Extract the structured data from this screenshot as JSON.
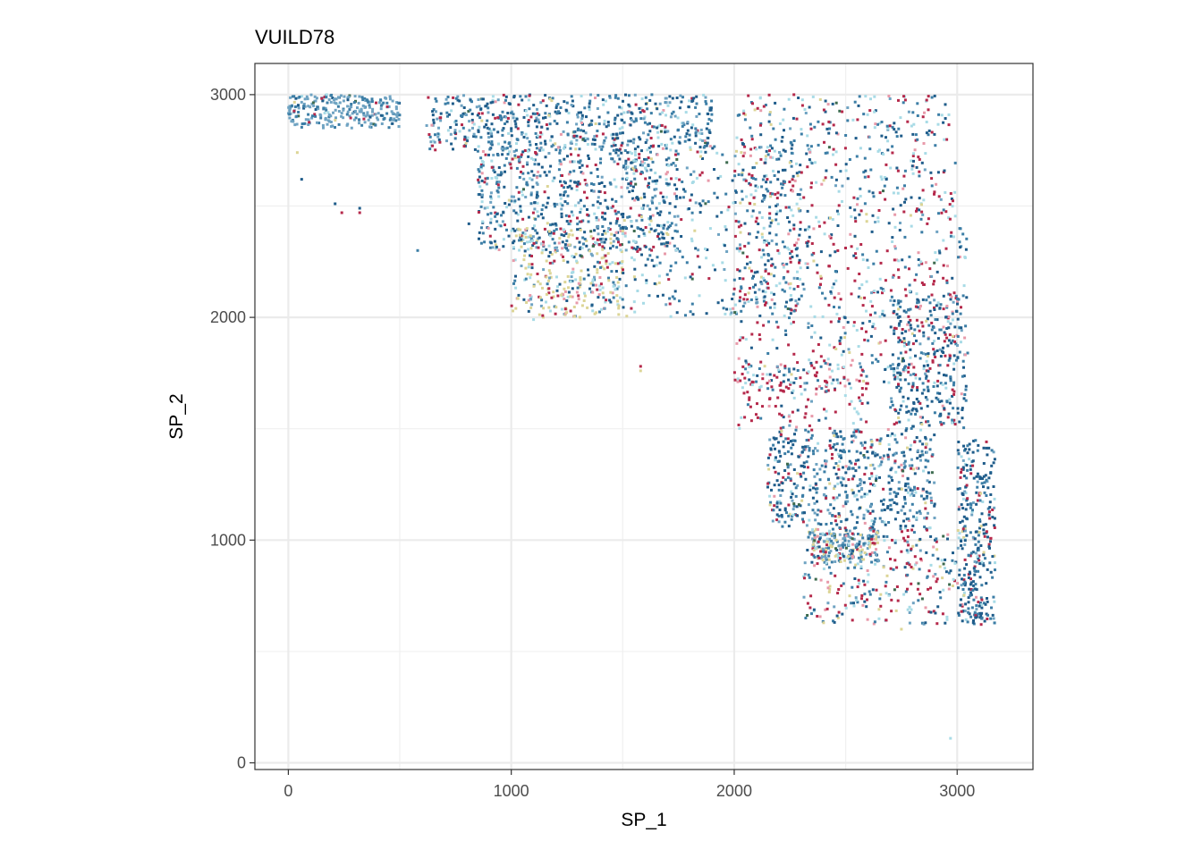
{
  "chart_data": {
    "type": "scatter",
    "title": "VUILD78",
    "xlabel": "SP_1",
    "ylabel": "SP_2",
    "xlim": [
      -150,
      3340
    ],
    "ylim": [
      -30,
      3140
    ],
    "xticks": [
      0,
      1000,
      2000,
      3000
    ],
    "yticks": [
      0,
      1000,
      2000,
      3000
    ],
    "grid": true,
    "legend": "none",
    "palette": [
      "#1f5c8a",
      "#3c7ea6",
      "#6fa3c2",
      "#a8dbe6",
      "#b5294b",
      "#e89aaa",
      "#dcd596",
      "#3d6b4f"
    ],
    "series": [
      {
        "color": "#1f5c8a"
      },
      {
        "color": "#3c7ea6"
      },
      {
        "color": "#6fa3c2"
      },
      {
        "color": "#a8dbe6"
      },
      {
        "color": "#b5294b"
      },
      {
        "color": "#e89aaa"
      },
      {
        "color": "#dcd596"
      },
      {
        "color": "#3d6b4f"
      }
    ],
    "regions": [
      {
        "x": [
          0,
          500
        ],
        "y": [
          2850,
          3000
        ],
        "n": 260,
        "w": [
          0.05,
          0.25,
          0.6,
          0.05,
          0.02,
          0,
          0.01,
          0.02
        ]
      },
      {
        "x": [
          620,
          1900
        ],
        "y": [
          2750,
          3000
        ],
        "n": 600,
        "w": [
          0.3,
          0.3,
          0.15,
          0.12,
          0.08,
          0.02,
          0.02,
          0.01
        ]
      },
      {
        "x": [
          850,
          1750
        ],
        "y": [
          2300,
          2750
        ],
        "n": 650,
        "w": [
          0.32,
          0.28,
          0.1,
          0.12,
          0.1,
          0.03,
          0.04,
          0.01
        ]
      },
      {
        "x": [
          1000,
          1500
        ],
        "y": [
          2000,
          2400
        ],
        "n": 320,
        "w": [
          0.12,
          0.1,
          0.05,
          0.2,
          0.08,
          0.08,
          0.35,
          0.02
        ]
      },
      {
        "x": [
          1500,
          2300
        ],
        "y": [
          2000,
          2800
        ],
        "n": 420,
        "w": [
          0.25,
          0.25,
          0.05,
          0.2,
          0.15,
          0.03,
          0.05,
          0.02
        ]
      },
      {
        "x": [
          2000,
          3000
        ],
        "y": [
          2400,
          3000
        ],
        "n": 420,
        "w": [
          0.2,
          0.25,
          0.05,
          0.2,
          0.22,
          0.04,
          0.03,
          0.01
        ]
      },
      {
        "x": [
          2000,
          3050
        ],
        "y": [
          1700,
          2400
        ],
        "n": 480,
        "w": [
          0.18,
          0.22,
          0.05,
          0.18,
          0.28,
          0.05,
          0.03,
          0.01
        ]
      },
      {
        "x": [
          2700,
          3050
        ],
        "y": [
          1500,
          2100
        ],
        "n": 300,
        "w": [
          0.45,
          0.3,
          0.05,
          0.05,
          0.12,
          0.02,
          0.01,
          0
        ]
      },
      {
        "x": [
          2000,
          2600
        ],
        "y": [
          1500,
          1800
        ],
        "n": 150,
        "w": [
          0.1,
          0.1,
          0.05,
          0.15,
          0.55,
          0.05,
          0,
          0
        ]
      },
      {
        "x": [
          2150,
          2900
        ],
        "y": [
          1050,
          1500
        ],
        "n": 600,
        "w": [
          0.3,
          0.3,
          0.15,
          0.08,
          0.1,
          0.03,
          0.03,
          0.01
        ]
      },
      {
        "x": [
          2350,
          2650
        ],
        "y": [
          900,
          1050
        ],
        "n": 200,
        "w": [
          0.05,
          0.2,
          0.35,
          0.02,
          0.03,
          0.03,
          0.3,
          0.02
        ]
      },
      {
        "x": [
          2300,
          3100
        ],
        "y": [
          620,
          1050
        ],
        "n": 300,
        "w": [
          0.15,
          0.15,
          0.05,
          0.15,
          0.3,
          0.1,
          0.08,
          0.02
        ]
      },
      {
        "x": [
          3000,
          3170
        ],
        "y": [
          620,
          1450
        ],
        "n": 300,
        "w": [
          0.45,
          0.25,
          0.05,
          0.05,
          0.15,
          0.03,
          0.02,
          0
        ]
      }
    ],
    "outliers": [
      {
        "x": 2970,
        "y": 110,
        "s": 3
      },
      {
        "x": 1580,
        "y": 1760,
        "s": 6
      },
      {
        "x": 1580,
        "y": 1780,
        "s": 4
      },
      {
        "x": 2750,
        "y": 600,
        "s": 6
      },
      {
        "x": 40,
        "y": 2740,
        "s": 6
      },
      {
        "x": 60,
        "y": 2620,
        "s": 0
      },
      {
        "x": 210,
        "y": 2510,
        "s": 0
      },
      {
        "x": 240,
        "y": 2470,
        "s": 4
      },
      {
        "x": 320,
        "y": 2470,
        "s": 4
      },
      {
        "x": 320,
        "y": 2490,
        "s": 0
      },
      {
        "x": 580,
        "y": 2300,
        "s": 1
      },
      {
        "x": 810,
        "y": 2420,
        "s": 0
      },
      {
        "x": 1100,
        "y": 1990,
        "s": 3
      }
    ]
  }
}
